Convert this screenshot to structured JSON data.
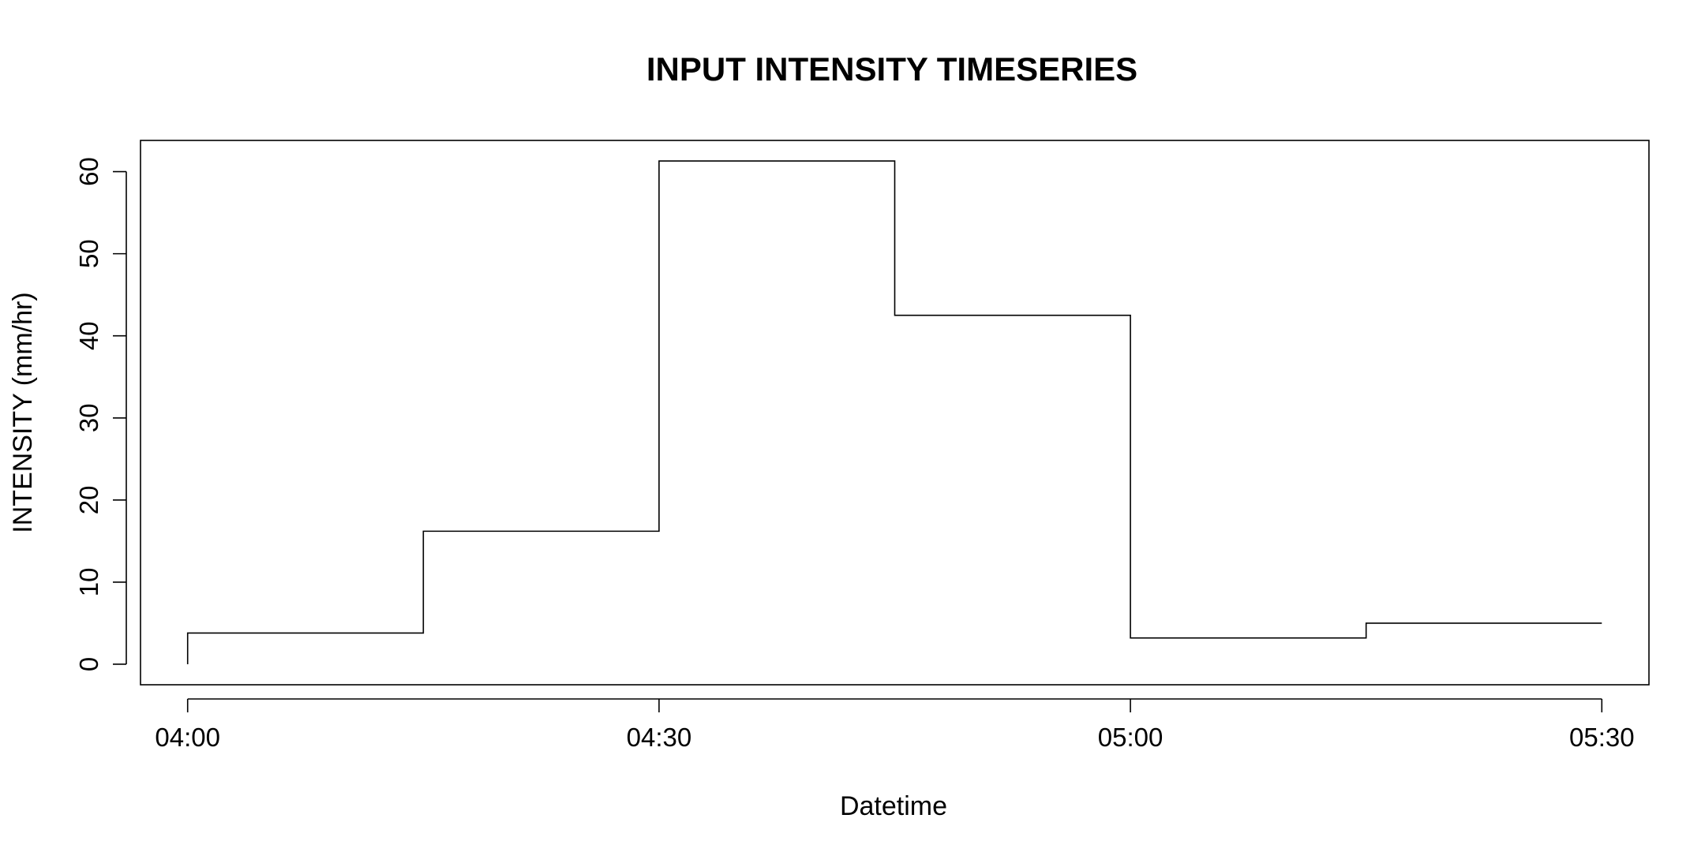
{
  "chart_data": {
    "type": "line",
    "style": "step",
    "title": "INPUT INTENSITY TIMESERIES",
    "xlabel": "Datetime",
    "ylabel": "INTENSITY (mm/hr)",
    "x_ticks": [
      "04:00",
      "04:30",
      "05:00",
      "05:30"
    ],
    "y_ticks": [
      0,
      10,
      20,
      30,
      40,
      50,
      60
    ],
    "xlim": [
      "03:57",
      "05:33"
    ],
    "ylim": [
      -2.5,
      63.8
    ],
    "grid": false,
    "legend": "none",
    "series": [
      {
        "x": [
          "04:00",
          "04:15",
          "04:30",
          "04:45",
          "05:00",
          "05:15",
          "05:30"
        ],
        "values": [
          3.8,
          16.2,
          61.3,
          42.5,
          3.2,
          5.0,
          5.0
        ]
      }
    ],
    "colors": {
      "line": "#000000",
      "background": "#ffffff"
    }
  }
}
